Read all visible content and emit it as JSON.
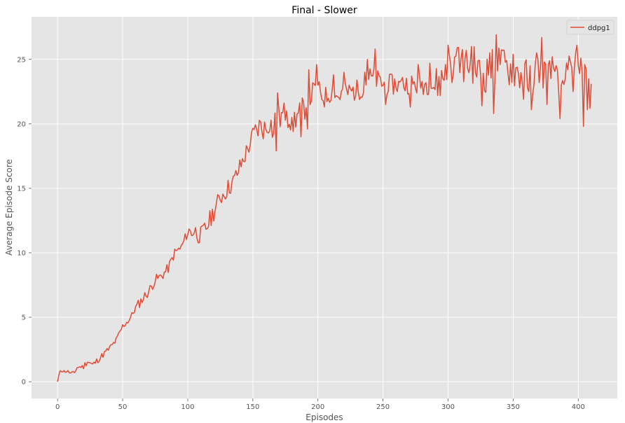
{
  "chart_data": {
    "type": "line",
    "title": "Final - Slower",
    "xlabel": "Episodes",
    "ylabel": "Average Episode Score",
    "xlim": [
      -20,
      430
    ],
    "ylim": [
      -1.3,
      28.3
    ],
    "xticks": [
      0,
      50,
      100,
      150,
      200,
      250,
      300,
      350,
      400
    ],
    "yticks": [
      0,
      5,
      10,
      15,
      20,
      25
    ],
    "grid": true,
    "legend_position": "top-right",
    "style": "ggplot",
    "series": [
      {
        "name": "ddpg1",
        "color": "#E24A33",
        "anchors": [
          [
            0,
            0.0
          ],
          [
            2,
            0.9
          ],
          [
            5,
            0.8
          ],
          [
            8,
            0.8
          ],
          [
            10,
            0.65
          ],
          [
            13,
            0.7
          ],
          [
            15,
            1.1
          ],
          [
            20,
            1.2
          ],
          [
            23,
            1.6
          ],
          [
            27,
            1.3
          ],
          [
            30,
            1.6
          ],
          [
            35,
            2.1
          ],
          [
            40,
            2.6
          ],
          [
            45,
            3.2
          ],
          [
            50,
            4.3
          ],
          [
            55,
            4.8
          ],
          [
            60,
            5.7
          ],
          [
            65,
            6.4
          ],
          [
            70,
            7.0
          ],
          [
            75,
            7.9
          ],
          [
            80,
            8.2
          ],
          [
            85,
            8.8
          ],
          [
            90,
            10.0
          ],
          [
            95,
            10.4
          ],
          [
            100,
            11.6
          ],
          [
            105,
            11.7
          ],
          [
            110,
            11.3
          ],
          [
            115,
            12.1
          ],
          [
            120,
            13.2
          ],
          [
            125,
            14.3
          ],
          [
            130,
            14.9
          ],
          [
            135,
            15.5
          ],
          [
            140,
            16.6
          ],
          [
            145,
            17.8
          ],
          [
            150,
            19.0
          ],
          [
            155,
            19.8
          ],
          [
            160,
            19.6
          ],
          [
            163,
            20.3
          ],
          [
            166,
            19.2
          ],
          [
            168,
            21.4
          ],
          [
            170,
            20.3
          ],
          [
            175,
            20.9
          ],
          [
            180,
            20.2
          ],
          [
            185,
            20.7
          ],
          [
            190,
            21.3
          ],
          [
            195,
            22.3
          ],
          [
            200,
            22.6
          ],
          [
            205,
            22.0
          ],
          [
            210,
            22.5
          ],
          [
            215,
            22.1
          ],
          [
            220,
            22.4
          ],
          [
            225,
            22.5
          ],
          [
            230,
            22.6
          ],
          [
            235,
            22.9
          ],
          [
            240,
            23.6
          ],
          [
            245,
            23.4
          ],
          [
            250,
            23.1
          ],
          [
            255,
            23.0
          ],
          [
            260,
            23.1
          ],
          [
            265,
            22.9
          ],
          [
            270,
            23.2
          ],
          [
            275,
            23.0
          ],
          [
            280,
            23.1
          ],
          [
            285,
            23.1
          ],
          [
            290,
            22.9
          ],
          [
            295,
            23.4
          ],
          [
            300,
            24.2
          ],
          [
            305,
            24.9
          ],
          [
            310,
            24.6
          ],
          [
            315,
            24.7
          ],
          [
            320,
            24.6
          ],
          [
            325,
            23.8
          ],
          [
            330,
            23.9
          ],
          [
            335,
            24.5
          ],
          [
            340,
            24.8
          ],
          [
            345,
            24.3
          ],
          [
            350,
            24.3
          ],
          [
            355,
            23.8
          ],
          [
            360,
            23.6
          ],
          [
            365,
            23.6
          ],
          [
            370,
            24.2
          ],
          [
            375,
            24.0
          ],
          [
            380,
            23.5
          ],
          [
            385,
            23.0
          ],
          [
            390,
            23.3
          ],
          [
            395,
            24.1
          ],
          [
            400,
            23.6
          ],
          [
            405,
            22.9
          ],
          [
            410,
            23.1
          ]
        ],
        "points": [
          [
            168,
            17.9
          ],
          [
            169,
            22.4
          ],
          [
            176,
            21.0
          ],
          [
            180,
            20.5
          ],
          [
            181,
            19.4
          ],
          [
            187,
            19.0
          ],
          [
            192,
            19.6
          ],
          [
            193,
            24.2
          ],
          [
            199,
            24.6
          ],
          [
            212,
            23.8
          ],
          [
            220,
            24.0
          ],
          [
            236,
            24.0
          ],
          [
            238,
            25.0
          ],
          [
            244,
            25.8
          ],
          [
            252,
            21.5
          ],
          [
            265,
            23.6
          ],
          [
            271,
            21.3
          ],
          [
            277,
            24.6
          ],
          [
            286,
            24.7
          ],
          [
            298,
            24.6
          ],
          [
            300,
            26.1
          ],
          [
            303,
            23.2
          ],
          [
            307,
            25.9
          ],
          [
            314,
            25.7
          ],
          [
            318,
            26.0
          ],
          [
            326,
            21.4
          ],
          [
            332,
            25.5
          ],
          [
            335,
            20.8
          ],
          [
            337,
            26.9
          ],
          [
            340,
            24.6
          ],
          [
            342,
            25.7
          ],
          [
            350,
            25.4
          ],
          [
            355,
            22.8
          ],
          [
            358,
            21.9
          ],
          [
            362,
            22.5
          ],
          [
            364,
            21.1
          ],
          [
            368,
            25.5
          ],
          [
            370,
            23.2
          ],
          [
            372,
            26.7
          ],
          [
            376,
            21.5
          ],
          [
            380,
            25.2
          ],
          [
            384,
            24.2
          ],
          [
            386,
            20.4
          ],
          [
            390,
            23.5
          ],
          [
            392,
            24.2
          ],
          [
            394,
            24.8
          ],
          [
            396,
            22.5
          ],
          [
            398,
            25.5
          ],
          [
            399,
            26.1
          ],
          [
            401,
            23.9
          ],
          [
            402,
            25.1
          ],
          [
            404,
            19.8
          ],
          [
            405,
            24.6
          ],
          [
            407,
            21.1
          ],
          [
            408,
            23.5
          ],
          [
            409,
            21.2
          ],
          [
            410,
            23.1
          ]
        ]
      }
    ]
  }
}
